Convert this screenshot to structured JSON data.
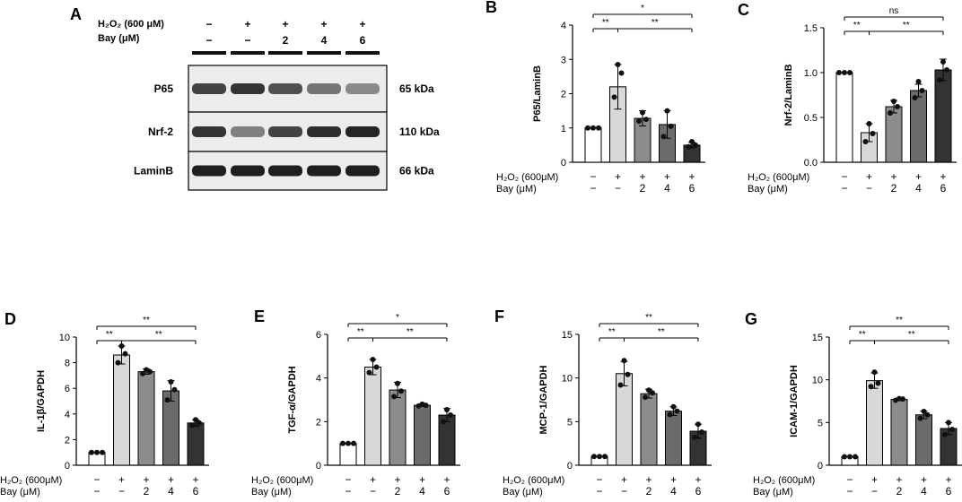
{
  "colors": {
    "bars": [
      "#ffffff",
      "#d8d8d8",
      "#8c8c8c",
      "#6b6b6b",
      "#333333"
    ],
    "band": "#111111",
    "blot_bg": "#ececec"
  },
  "western_blot": {
    "panel_label": "A",
    "row_labels": {
      "h2o2": "H₂O₂  (600  μM)",
      "bay": "Bay    (μM)"
    },
    "h2o2_marks": [
      "−",
      "+",
      "+",
      "+",
      "+"
    ],
    "bay_marks": [
      "−",
      "−",
      "2",
      "4",
      "6"
    ],
    "bands": [
      {
        "name": "P65",
        "size": "65 kDa",
        "intensities": [
          0.78,
          0.85,
          0.72,
          0.55,
          0.45
        ]
      },
      {
        "name": "Nrf-2",
        "size": "110 kDa",
        "intensities": [
          0.85,
          0.5,
          0.78,
          0.88,
          0.92
        ]
      },
      {
        "name": "LaminB",
        "size": "66 kDa",
        "intensities": [
          0.95,
          0.95,
          0.95,
          0.95,
          0.95
        ]
      }
    ]
  },
  "chart_data": [
    {
      "panel_label": "B",
      "type": "bar",
      "ylabel": "P65/LaminB",
      "ylim": [
        0,
        4
      ],
      "yticks": [
        "0",
        "1",
        "2",
        "3",
        "4"
      ],
      "values": [
        1.0,
        2.2,
        1.28,
        1.1,
        0.5
      ],
      "errors": [
        0.0,
        0.65,
        0.22,
        0.4,
        0.08
      ],
      "points": [
        [
          1.0,
          1.0,
          1.0
        ],
        [
          1.9,
          2.6,
          2.85
        ],
        [
          1.2,
          1.25,
          1.45
        ],
        [
          0.75,
          1.05,
          1.5
        ],
        [
          0.45,
          0.5,
          0.6
        ]
      ],
      "significance": [
        {
          "from": 0,
          "to": 4,
          "label": "*"
        },
        {
          "from": 0,
          "to": 1,
          "label": "**"
        },
        {
          "from": 1,
          "to": 4,
          "label": "**"
        }
      ],
      "h2o2_label": "H₂O₂  (600μM)",
      "bay_label": "Bay      (μM)",
      "h2o2_marks": [
        "−",
        "+",
        "+",
        "+",
        "+"
      ],
      "bay_marks": [
        "−",
        "−",
        "2",
        "4",
        "6"
      ]
    },
    {
      "panel_label": "C",
      "type": "bar",
      "ylabel": "Nrf-2/LaminB",
      "ylim": [
        0,
        1.5
      ],
      "yticks": [
        "0.0",
        "0.5",
        "1.0",
        "1.5"
      ],
      "values": [
        1.0,
        0.33,
        0.62,
        0.8,
        1.03
      ],
      "errors": [
        0.0,
        0.1,
        0.07,
        0.07,
        0.12
      ],
      "points": [
        [
          1.0,
          1.0,
          1.0
        ],
        [
          0.23,
          0.32,
          0.43
        ],
        [
          0.55,
          0.62,
          0.68
        ],
        [
          0.72,
          0.8,
          0.9
        ],
        [
          0.92,
          1.03,
          1.12
        ]
      ],
      "significance": [
        {
          "from": 0,
          "to": 4,
          "label": "ns"
        },
        {
          "from": 0,
          "to": 1,
          "label": "**"
        },
        {
          "from": 1,
          "to": 4,
          "label": "**"
        }
      ],
      "h2o2_label": "H₂O₂  (600μM)",
      "bay_label": "Bay      (μM)",
      "h2o2_marks": [
        "−",
        "+",
        "+",
        "+",
        "+"
      ],
      "bay_marks": [
        "−",
        "−",
        "2",
        "4",
        "6"
      ]
    },
    {
      "panel_label": "D",
      "type": "bar",
      "ylabel": "IL-1β/GAPDH",
      "ylim": [
        0,
        10
      ],
      "yticks": [
        "0",
        "2",
        "4",
        "6",
        "8",
        "10"
      ],
      "values": [
        1.0,
        8.6,
        7.3,
        5.8,
        3.3
      ],
      "errors": [
        0.0,
        0.7,
        0.2,
        0.8,
        0.25
      ],
      "points": [
        [
          1.0,
          1.0,
          1.0
        ],
        [
          8.0,
          8.7,
          9.3
        ],
        [
          7.15,
          7.3,
          7.45
        ],
        [
          5.1,
          5.9,
          6.5
        ],
        [
          3.1,
          3.3,
          3.55
        ]
      ],
      "significance": [
        {
          "from": 0,
          "to": 4,
          "label": "**"
        },
        {
          "from": 0,
          "to": 1,
          "label": "**"
        },
        {
          "from": 1,
          "to": 4,
          "label": "**"
        }
      ],
      "h2o2_label": "H₂O₂  (600μM)",
      "bay_label": "Bay      (μM)",
      "h2o2_marks": [
        "−",
        "+",
        "+",
        "+",
        "+"
      ],
      "bay_marks": [
        "−",
        "−",
        "2",
        "4",
        "6"
      ]
    },
    {
      "panel_label": "E",
      "type": "bar",
      "ylabel": "TGF-α/GAPDH",
      "ylim": [
        0,
        6
      ],
      "yticks": [
        "0",
        "2",
        "4",
        "6"
      ],
      "values": [
        1.0,
        4.5,
        3.45,
        2.75,
        2.3
      ],
      "errors": [
        0.0,
        0.35,
        0.35,
        0.05,
        0.3
      ],
      "points": [
        [
          1.0,
          1.0,
          1.0
        ],
        [
          4.25,
          4.5,
          4.85
        ],
        [
          3.15,
          3.4,
          3.75
        ],
        [
          2.72,
          2.75,
          2.8
        ],
        [
          2.0,
          2.3,
          2.55
        ]
      ],
      "significance": [
        {
          "from": 0,
          "to": 4,
          "label": "*"
        },
        {
          "from": 0,
          "to": 1,
          "label": "**"
        },
        {
          "from": 1,
          "to": 4,
          "label": "**"
        }
      ],
      "h2o2_label": "H₂O₂  (600μM)",
      "bay_label": "Bay      (μM)",
      "h2o2_marks": [
        "−",
        "+",
        "+",
        "+",
        "+"
      ],
      "bay_marks": [
        "−",
        "−",
        "2",
        "4",
        "6"
      ]
    },
    {
      "panel_label": "F",
      "type": "bar",
      "ylabel": "MCP-1/GAPDH",
      "ylim": [
        0,
        15
      ],
      "yticks": [
        "0",
        "5",
        "10",
        "15"
      ],
      "values": [
        1.0,
        10.5,
        8.2,
        6.2,
        3.9
      ],
      "errors": [
        0.0,
        1.4,
        0.5,
        0.5,
        0.8
      ],
      "points": [
        [
          1.0,
          1.0,
          1.0
        ],
        [
          9.2,
          10.4,
          12.0
        ],
        [
          7.8,
          8.3,
          8.6
        ],
        [
          5.8,
          6.2,
          6.7
        ],
        [
          3.2,
          3.8,
          4.7
        ]
      ],
      "significance": [
        {
          "from": 0,
          "to": 4,
          "label": "**"
        },
        {
          "from": 0,
          "to": 1,
          "label": "**"
        },
        {
          "from": 1,
          "to": 4,
          "label": "**"
        }
      ],
      "h2o2_label": "H₂O₂  (600μM)",
      "bay_label": "Bay      (μM)",
      "h2o2_marks": [
        "−",
        "+",
        "+",
        "+",
        "+"
      ],
      "bay_marks": [
        "−",
        "−",
        "2",
        "4",
        "6"
      ]
    },
    {
      "panel_label": "G",
      "type": "bar",
      "ylabel": "ICAM-1/GAPDH",
      "ylim": [
        0,
        15
      ],
      "yticks": [
        "0",
        "5",
        "10",
        "15"
      ],
      "values": [
        1.0,
        9.9,
        7.7,
        5.9,
        4.3
      ],
      "errors": [
        0.0,
        0.9,
        0.15,
        0.45,
        0.7
      ],
      "points": [
        [
          1.0,
          1.0,
          1.0
        ],
        [
          9.2,
          9.6,
          10.9
        ],
        [
          7.6,
          7.75,
          7.8
        ],
        [
          5.5,
          5.9,
          6.3
        ],
        [
          3.6,
          4.2,
          5.0
        ]
      ],
      "significance": [
        {
          "from": 0,
          "to": 4,
          "label": "**"
        },
        {
          "from": 0,
          "to": 1,
          "label": "**"
        },
        {
          "from": 1,
          "to": 4,
          "label": "**"
        }
      ],
      "h2o2_label": "H₂O₂  (600μM)",
      "bay_label": "Bay      (μM)",
      "h2o2_marks": [
        "−",
        "+",
        "+",
        "+",
        "+"
      ],
      "bay_marks": [
        "−",
        "−",
        "2",
        "4",
        "6"
      ]
    }
  ]
}
